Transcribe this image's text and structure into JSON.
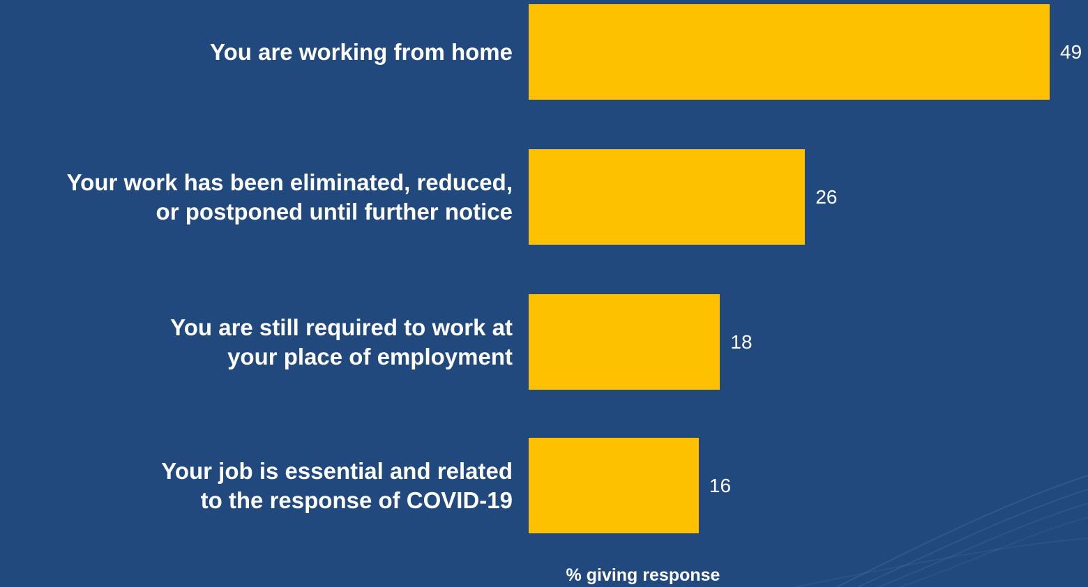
{
  "colors": {
    "background": "#21497e",
    "bar": "#fec100",
    "text": "#ffffff"
  },
  "chart_data": {
    "type": "bar",
    "orientation": "horizontal",
    "categories": [
      [
        "You are working from home"
      ],
      [
        "Your work has been eliminated, reduced,",
        "or postponed until further notice"
      ],
      [
        "You are still required to work at",
        "your place of employment"
      ],
      [
        "Your job is essential and related",
        "to the response of COVID-19"
      ]
    ],
    "values": [
      49,
      26,
      18,
      16
    ],
    "xlabel": "% giving response",
    "xlim": [
      0,
      50
    ],
    "grid": false,
    "legend": "none"
  }
}
